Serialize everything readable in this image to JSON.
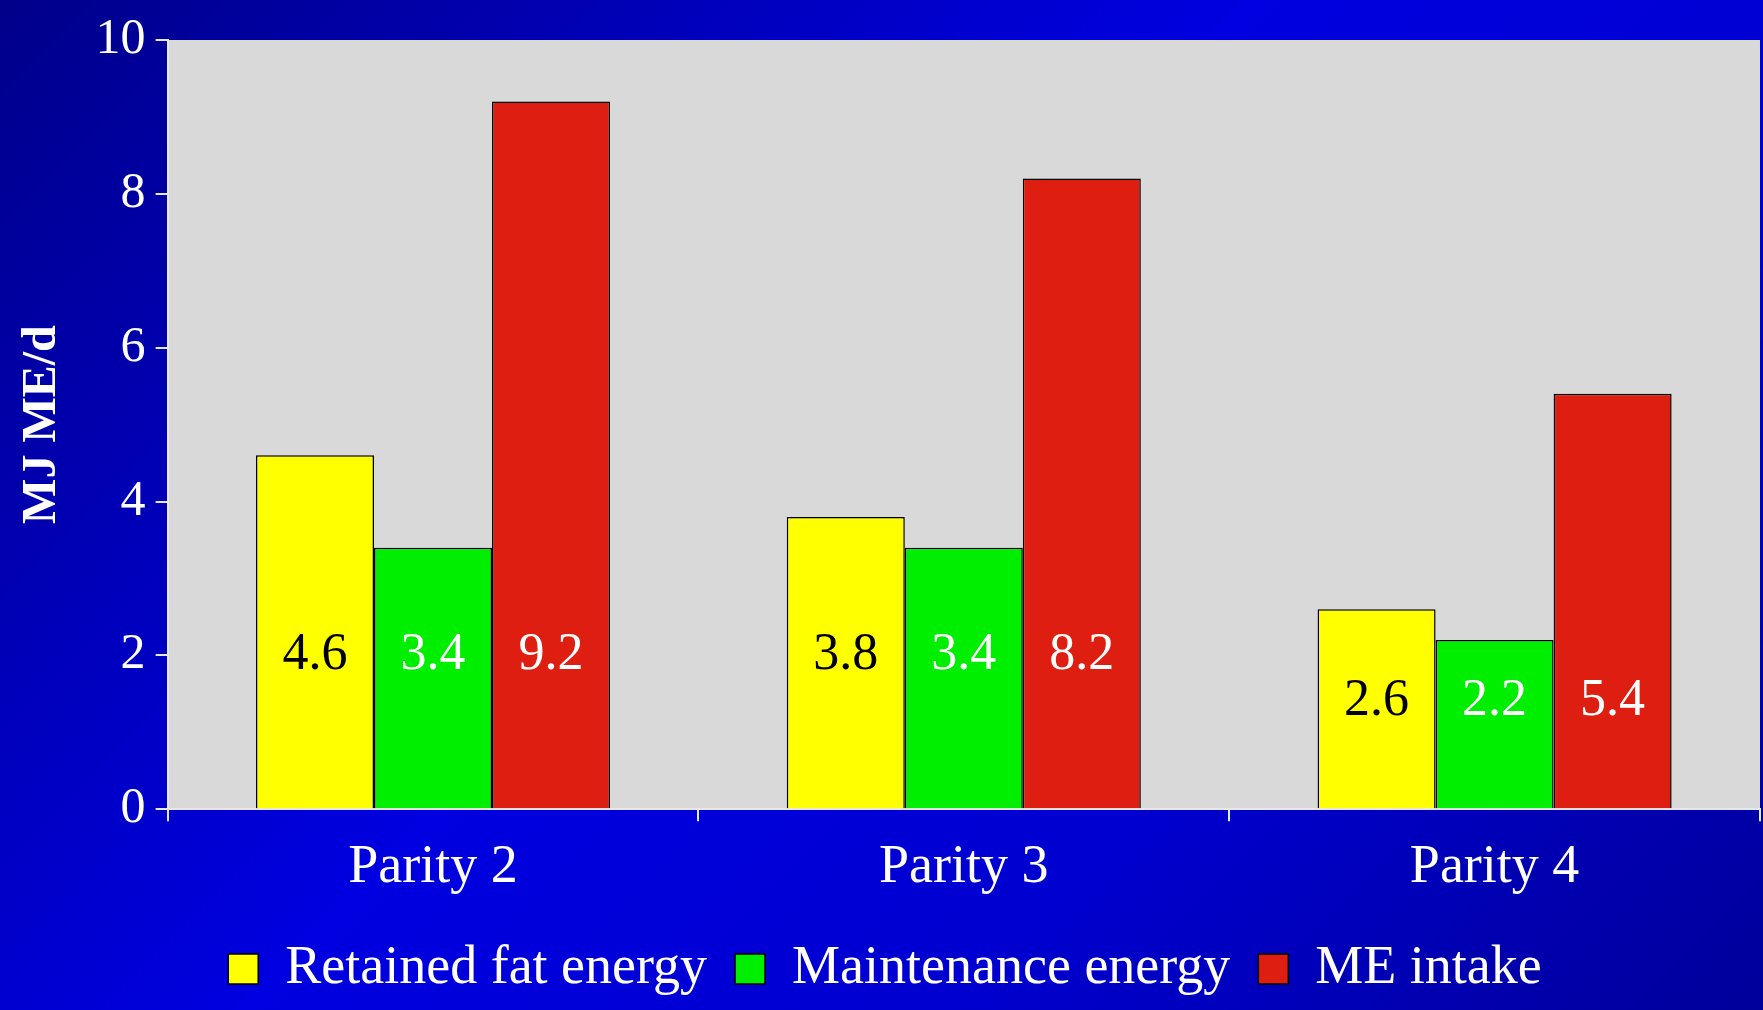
{
  "chart_data": {
    "type": "bar",
    "ylabel": "MJ ME/d",
    "categories": [
      "Parity 2",
      "Parity 3",
      "Parity 4"
    ],
    "series": [
      {
        "name": "Retained fat energy",
        "color": "#ffff00",
        "values": [
          4.6,
          3.8,
          2.6
        ]
      },
      {
        "name": "Maintenance energy",
        "color": "#00ee00",
        "values": [
          3.4,
          3.4,
          2.2
        ]
      },
      {
        "name": "ME intake",
        "color": "#dd1e10",
        "values": [
          9.2,
          8.2,
          5.4
        ]
      }
    ],
    "ylim": [
      0,
      10
    ],
    "yticks": [
      0,
      2,
      4,
      6,
      8,
      10
    ],
    "grid": false,
    "legend": "bottom",
    "data_labels": true
  }
}
